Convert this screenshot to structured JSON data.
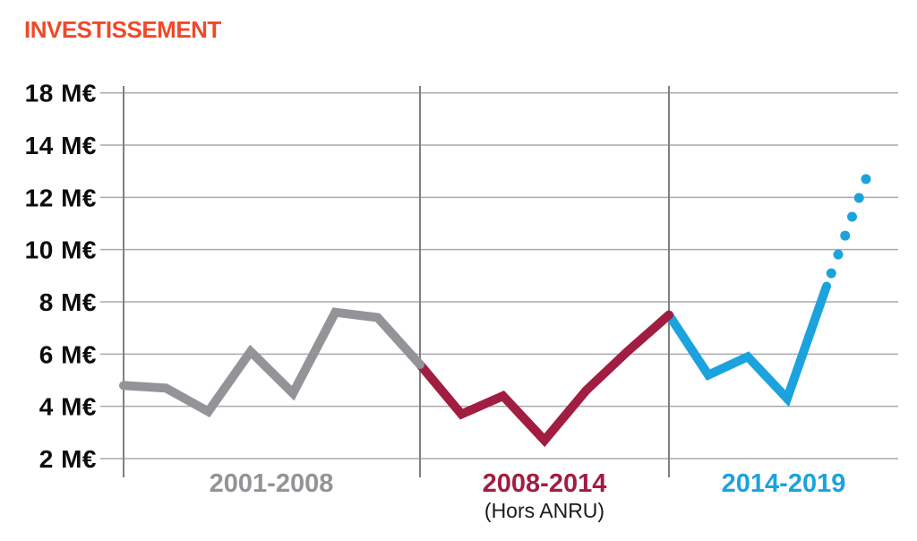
{
  "title": {
    "text": "INVESTISSEMENT"
  },
  "colors": {
    "title": "#f0492a",
    "axis_text": "#0d0d0d",
    "sublabel_text": "#1a1a1a",
    "gridline": "#aaaaae",
    "divider": "#7f7f84",
    "background": "#ffffff",
    "period_gray": "#939398",
    "period_red": "#a11d41",
    "period_blue": "#1ca3dd"
  },
  "y_axis": {
    "tick_labels_top_to_bottom": [
      "18 M€",
      "14 M€",
      "12 M€",
      "10 M€",
      "8 M€",
      "6 M€",
      "4 M€",
      "2 M€"
    ]
  },
  "periods": [
    {
      "label": "2001-2008",
      "sublabel": "",
      "color": "#939398",
      "from_year": 2001,
      "to_year": 2008
    },
    {
      "label": "2008-2014",
      "sublabel": "(Hors ANRU)",
      "color": "#a11d41",
      "from_year": 2008,
      "to_year": 2014
    },
    {
      "label": "2014-2019",
      "sublabel": "",
      "color": "#1ca3dd",
      "from_year": 2014,
      "to_year": 2019
    }
  ],
  "chart_data": {
    "type": "line",
    "title": "INVESTISSEMENT",
    "unit": "M€",
    "grid": true,
    "y_tick_labels_top_to_bottom": [
      "18 M€",
      "14 M€",
      "12 M€",
      "10 M€",
      "8 M€",
      "6 M€",
      "4 M€",
      "2 M€"
    ],
    "y_axis_note": "gridlines evenly spaced every 2 M€ from 2 M€; top gridline is labeled 18 M€ in the original graphic",
    "x_divider_years": [
      2001,
      2008,
      2014
    ],
    "series": [
      {
        "name": "2001-2008",
        "color": "#939398",
        "line_style": "solid",
        "points": [
          {
            "year": 2001,
            "value": 4.8
          },
          {
            "year": 2002,
            "value": 4.7
          },
          {
            "year": 2003,
            "value": 3.8
          },
          {
            "year": 2004,
            "value": 6.1
          },
          {
            "year": 2005,
            "value": 4.5
          },
          {
            "year": 2006,
            "value": 7.6
          },
          {
            "year": 2007,
            "value": 7.4
          },
          {
            "year": 2008,
            "value": 5.6
          }
        ]
      },
      {
        "name": "2008-2014 (Hors ANRU)",
        "color": "#a11d41",
        "line_style": "solid",
        "points": [
          {
            "year": 2008,
            "value": 5.6
          },
          {
            "year": 2009,
            "value": 3.7
          },
          {
            "year": 2010,
            "value": 4.4
          },
          {
            "year": 2011,
            "value": 2.7
          },
          {
            "year": 2012,
            "value": 4.6
          },
          {
            "year": 2013,
            "value": 6.1
          },
          {
            "year": 2014,
            "value": 7.5
          }
        ]
      },
      {
        "name": "2014-2019",
        "color": "#1ca3dd",
        "line_style": "solid",
        "points": [
          {
            "year": 2014,
            "value": 7.5
          },
          {
            "year": 2015,
            "value": 5.2
          },
          {
            "year": 2016,
            "value": 5.9
          },
          {
            "year": 2017,
            "value": 4.3
          },
          {
            "year": 2018,
            "value": 8.6
          }
        ]
      }
    ],
    "projection": {
      "name": "2014-2019 projection",
      "color": "#1ca3dd",
      "line_style": "dotted",
      "from": {
        "year": 2018,
        "value": 8.6
      },
      "to": {
        "year": 2019,
        "value": 12.7
      },
      "num_dots": 6
    }
  }
}
